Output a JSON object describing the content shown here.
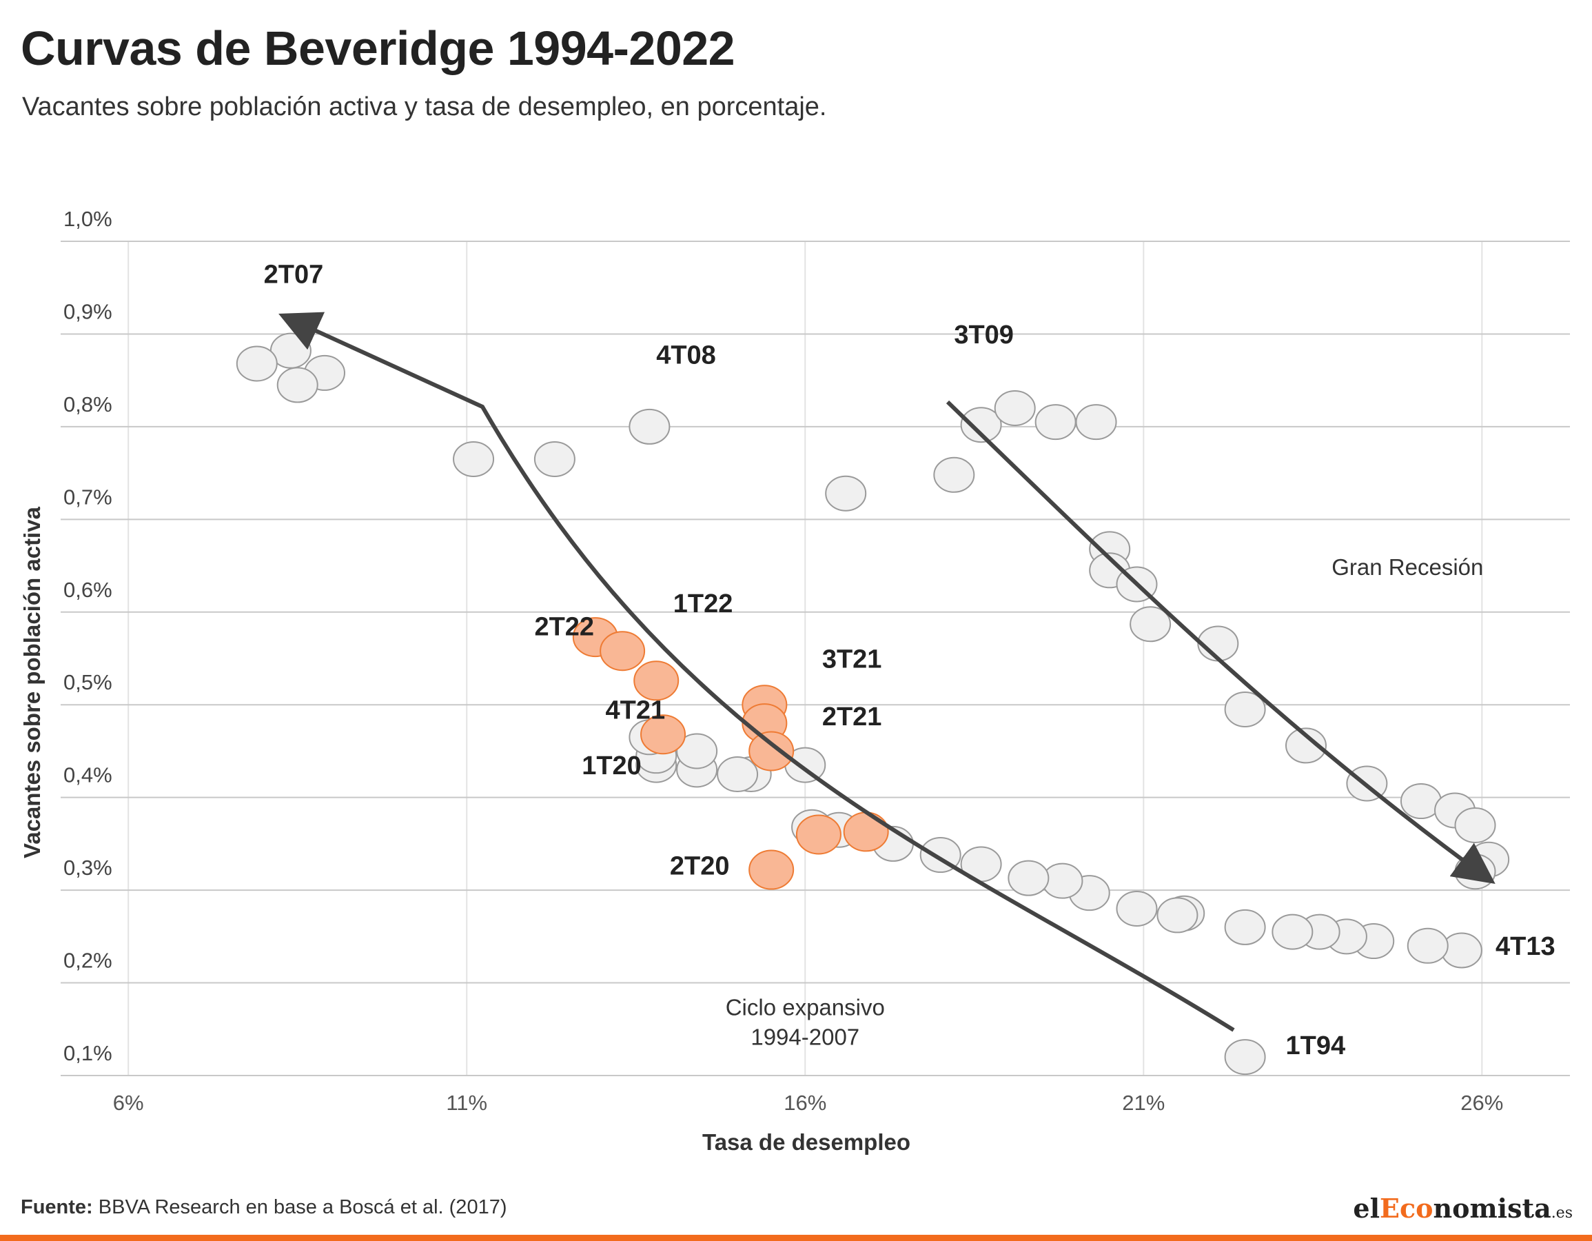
{
  "header": {
    "title": "Curvas de Beveridge 1994-2022",
    "subtitle": "Vacantes sobre población activa y tasa de desempleo, en porcentaje."
  },
  "footer": {
    "source_label": "Fuente:",
    "source_text": "BBVA Research en base a Boscá et al. (2017)",
    "logo_prefix": "el",
    "logo_accent": "Eco",
    "logo_suffix": "nomista",
    "logo_tld": ".es"
  },
  "colors": {
    "highlight_fill": "#f9b795",
    "highlight_stroke": "#ee7b34",
    "point_fill": "#f0f0f0",
    "point_stroke": "#9a9a9a",
    "arrow": "#444444",
    "accent": "#f26b1d"
  },
  "chart_data": {
    "type": "scatter",
    "title": "Curvas de Beveridge 1994-2022",
    "subtitle": "Vacantes sobre población activa y tasa de desempleo, en porcentaje.",
    "xlabel": "Tasa de desempleo",
    "ylabel": "Vacantes sobre población activa",
    "xlim": [
      5,
      27.3
    ],
    "ylim": [
      0.1,
      1.0
    ],
    "x_ticks": [
      {
        "value": 6,
        "label": "6%"
      },
      {
        "value": 11,
        "label": "11%"
      },
      {
        "value": 16,
        "label": "16%"
      },
      {
        "value": 21,
        "label": "21%"
      },
      {
        "value": 26,
        "label": "26%"
      }
    ],
    "y_ticks": [
      {
        "value": 0.1,
        "label": "0,1%"
      },
      {
        "value": 0.2,
        "label": "0,2%"
      },
      {
        "value": 0.3,
        "label": "0,3%"
      },
      {
        "value": 0.4,
        "label": "0,4%"
      },
      {
        "value": 0.5,
        "label": "0,5%"
      },
      {
        "value": 0.6,
        "label": "0,6%"
      },
      {
        "value": 0.7,
        "label": "0,7%"
      },
      {
        "value": 0.8,
        "label": "0,8%"
      },
      {
        "value": 0.9,
        "label": "0,9%"
      },
      {
        "value": 1.0,
        "label": "1,0%"
      }
    ],
    "grid": true,
    "series": [
      {
        "points": [
          [
            22.5,
            0.12
          ],
          [
            21.6,
            0.275
          ],
          [
            20.9,
            0.28
          ],
          [
            20.2,
            0.297
          ],
          [
            19.8,
            0.31
          ],
          [
            19.3,
            0.313
          ],
          [
            18.6,
            0.328
          ],
          [
            18.0,
            0.338
          ],
          [
            17.3,
            0.35
          ],
          [
            16.5,
            0.365
          ],
          [
            16.1,
            0.368
          ],
          [
            16.0,
            0.435
          ],
          [
            15.2,
            0.425
          ],
          [
            15.0,
            0.425
          ],
          [
            14.4,
            0.43
          ],
          [
            13.8,
            0.435
          ],
          [
            13.8,
            0.445
          ],
          [
            14.4,
            0.45
          ],
          [
            13.7,
            0.465
          ],
          [
            12.3,
            0.765
          ],
          [
            11.1,
            0.765
          ],
          [
            8.9,
            0.858
          ],
          [
            8.5,
            0.845
          ],
          [
            8.4,
            0.882
          ],
          [
            7.9,
            0.868
          ],
          [
            13.7,
            0.8
          ],
          [
            16.6,
            0.728
          ],
          [
            18.2,
            0.748
          ],
          [
            18.6,
            0.802
          ],
          [
            19.1,
            0.82
          ],
          [
            19.7,
            0.805
          ],
          [
            20.3,
            0.805
          ],
          [
            20.5,
            0.668
          ],
          [
            20.5,
            0.645
          ],
          [
            20.9,
            0.63
          ],
          [
            21.1,
            0.587
          ],
          [
            22.1,
            0.566
          ],
          [
            22.5,
            0.495
          ],
          [
            23.4,
            0.456
          ],
          [
            24.3,
            0.415
          ],
          [
            25.1,
            0.396
          ],
          [
            25.6,
            0.386
          ],
          [
            25.9,
            0.37
          ],
          [
            26.1,
            0.333
          ],
          [
            25.9,
            0.32
          ],
          [
            25.7,
            0.235
          ],
          [
            25.2,
            0.24
          ],
          [
            24.4,
            0.245
          ],
          [
            24.0,
            0.25
          ],
          [
            23.6,
            0.255
          ],
          [
            23.2,
            0.255
          ],
          [
            22.5,
            0.26
          ],
          [
            21.5,
            0.273
          ]
        ]
      },
      {
        "points": [
          [
            12.9,
            0.573
          ],
          [
            13.3,
            0.558
          ],
          [
            13.8,
            0.526
          ],
          [
            15.4,
            0.5
          ],
          [
            15.4,
            0.48
          ],
          [
            13.9,
            0.468
          ],
          [
            15.5,
            0.45
          ],
          [
            16.2,
            0.36
          ],
          [
            16.9,
            0.363
          ],
          [
            15.5,
            0.322
          ]
        ]
      }
    ],
    "point_labels": [
      {
        "text": "2T07",
        "x": 8.0,
        "y": 0.955
      },
      {
        "text": "4T08",
        "x": 13.8,
        "y": 0.868
      },
      {
        "text": "3T09",
        "x": 18.2,
        "y": 0.89
      },
      {
        "text": "2T22",
        "x": 12.0,
        "y": 0.575
      },
      {
        "text": "1T22",
        "x": 14.05,
        "y": 0.6
      },
      {
        "text": "3T21",
        "x": 16.25,
        "y": 0.54
      },
      {
        "text": "4T21",
        "x": 13.05,
        "y": 0.485
      },
      {
        "text": "2T21",
        "x": 16.25,
        "y": 0.478
      },
      {
        "text": "1T20",
        "x": 12.7,
        "y": 0.425
      },
      {
        "text": "2T20",
        "x": 14.0,
        "y": 0.317
      },
      {
        "text": "4T13",
        "x": 26.2,
        "y": 0.23
      },
      {
        "text": "1T94",
        "x": 23.1,
        "y": 0.123
      }
    ],
    "annotations": [
      {
        "text": "Gran Recesión",
        "x": 24.9,
        "y": 0.64
      },
      {
        "text": "Ciclo expansivo",
        "x": 16.0,
        "y": 0.165
      },
      {
        "text": "1994-2007",
        "x": 16.0,
        "y": 0.133
      }
    ]
  }
}
